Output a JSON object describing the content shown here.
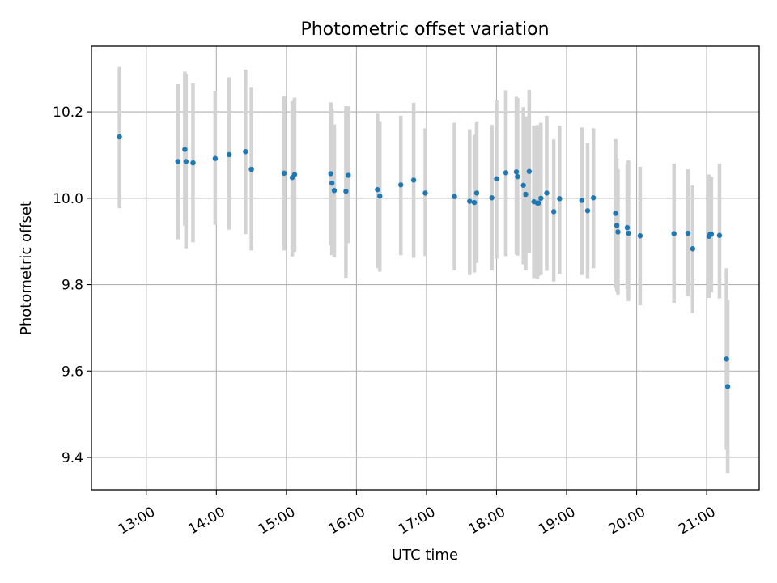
{
  "chart_data": {
    "type": "scatter",
    "title": "Photometric offset variation",
    "xlabel": "UTC time",
    "ylabel": "Photometric offset",
    "xlim": [
      "12:13",
      "21:45"
    ],
    "ylim": [
      9.325,
      10.352
    ],
    "x_ticks": [
      "13:00",
      "14:00",
      "15:00",
      "16:00",
      "17:00",
      "18:00",
      "19:00",
      "20:00",
      "21:00"
    ],
    "y_ticks": [
      9.4,
      9.6,
      9.8,
      10.0,
      10.2
    ],
    "y_tick_labels": [
      "9.4",
      "9.6",
      "9.8",
      "10.0",
      "10.2"
    ],
    "grid": true,
    "colors": {
      "points": "#1f77b4",
      "errorbars": "#d3d3d3"
    },
    "series": [
      {
        "x": [
          "12:37",
          "13:27",
          "13:33",
          "13:34",
          "13:40",
          "13:59",
          "14:11",
          "14:25",
          "14:30",
          "14:58",
          "15:05",
          "15:07",
          "15:38",
          "15:39",
          "15:41",
          "15:51",
          "15:53",
          "16:18",
          "16:20",
          "16:38",
          "16:49",
          "16:59",
          "17:24",
          "17:37",
          "17:41",
          "17:43",
          "17:56",
          "18:00",
          "18:08",
          "18:17",
          "18:18",
          "18:23",
          "18:25",
          "18:28",
          "18:32",
          "18:35",
          "18:36",
          "18:38",
          "18:43",
          "18:49",
          "18:54",
          "19:13",
          "19:18",
          "19:23",
          "19:42",
          "19:43",
          "19:44",
          "19:52",
          "19:53",
          "20:03",
          "20:32",
          "20:44",
          "20:48",
          "21:02",
          "21:03",
          "21:04",
          "21:11",
          "21:17",
          "21:18"
        ],
        "y": [
          10.142,
          10.085,
          10.113,
          10.085,
          10.082,
          10.092,
          10.101,
          10.108,
          10.067,
          10.058,
          10.048,
          10.055,
          10.057,
          10.035,
          10.018,
          10.016,
          10.053,
          10.02,
          10.005,
          10.031,
          10.042,
          10.012,
          10.004,
          9.993,
          9.99,
          10.012,
          10.001,
          10.045,
          10.059,
          10.061,
          10.05,
          10.03,
          10.009,
          10.062,
          9.992,
          9.989,
          9.989,
          10.0,
          10.012,
          9.969,
          9.999,
          9.995,
          9.971,
          10.001,
          9.965,
          9.937,
          9.922,
          9.932,
          9.919,
          9.913,
          9.918,
          9.919,
          9.883,
          9.912,
          9.917,
          9.917,
          9.914,
          9.628,
          9.564
        ],
        "err_low": [
          9.977,
          9.905,
          9.937,
          9.884,
          9.898,
          9.938,
          9.927,
          9.917,
          9.879,
          9.879,
          9.865,
          9.876,
          9.891,
          9.868,
          9.863,
          9.816,
          9.896,
          9.838,
          9.83,
          9.868,
          9.862,
          9.866,
          9.833,
          9.822,
          9.828,
          9.85,
          9.833,
          9.86,
          9.866,
          9.87,
          9.867,
          9.847,
          9.833,
          9.874,
          9.815,
          9.813,
          9.82,
          9.822,
          9.832,
          9.807,
          9.825,
          9.822,
          9.815,
          9.838,
          9.792,
          9.783,
          9.777,
          9.79,
          9.762,
          9.752,
          9.758,
          9.773,
          9.734,
          9.769,
          9.786,
          9.782,
          9.768,
          9.418,
          9.364
        ],
        "err_high": [
          10.304,
          10.264,
          10.293,
          10.287,
          10.266,
          10.249,
          10.28,
          10.298,
          10.256,
          10.236,
          10.225,
          10.233,
          10.222,
          10.207,
          10.171,
          10.213,
          10.213,
          10.196,
          10.177,
          10.191,
          10.221,
          10.162,
          10.175,
          10.16,
          10.147,
          10.176,
          10.17,
          10.227,
          10.25,
          10.235,
          10.232,
          10.211,
          10.19,
          10.251,
          10.168,
          10.17,
          10.156,
          10.175,
          10.191,
          10.136,
          10.168,
          10.164,
          10.127,
          10.162,
          10.137,
          10.093,
          10.067,
          10.078,
          10.088,
          10.073,
          10.08,
          10.067,
          10.03,
          10.055,
          10.05,
          10.049,
          10.08,
          9.838,
          9.765
        ]
      }
    ]
  }
}
